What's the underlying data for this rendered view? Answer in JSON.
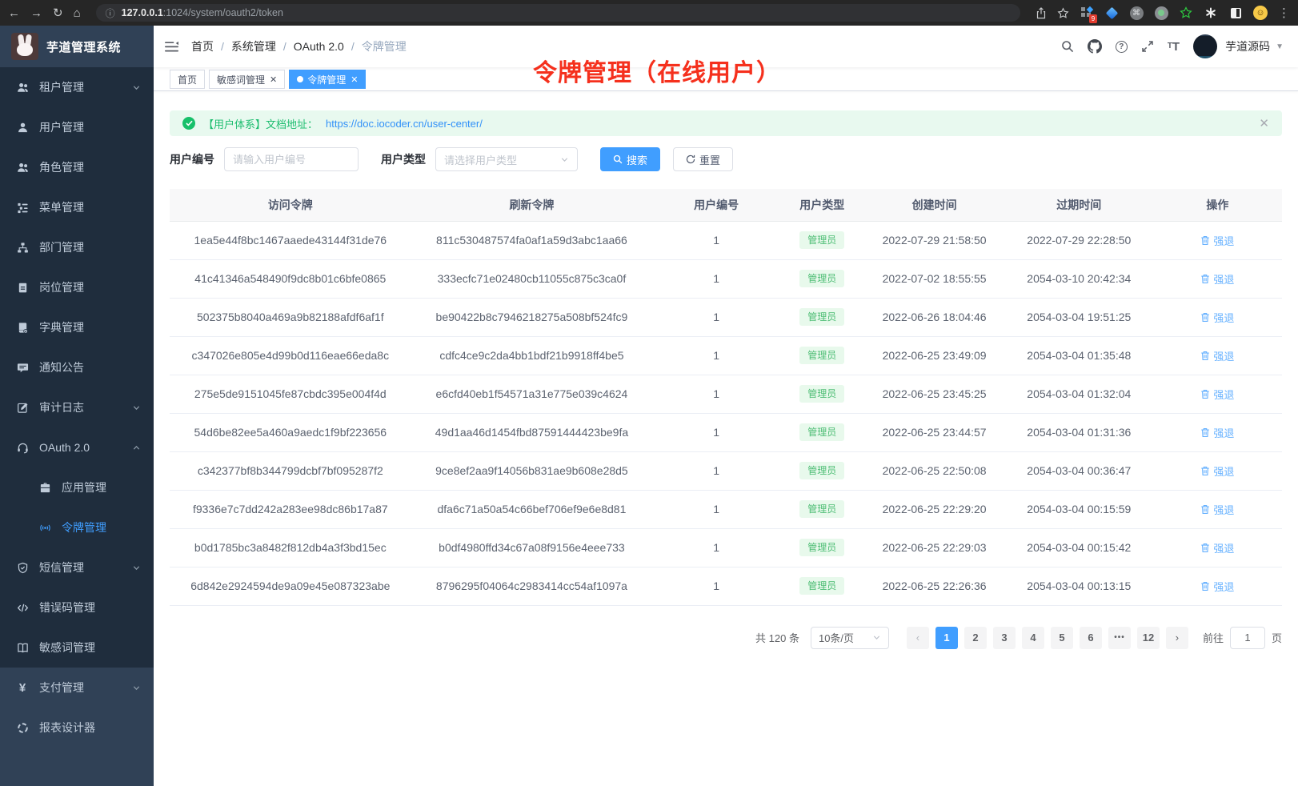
{
  "colors": {
    "accent": "#409eff",
    "success": "#17c06a",
    "link": "#3291f8",
    "annotation": "#f5301d",
    "menu-bg": "#304156",
    "submenu-bg": "#1f2d3d",
    "menu-text": "#bfcbd9",
    "badge-bg": "#e8f9ec",
    "badge-text": "#4dbd74",
    "action-link": "#66b1ff",
    "tab-active": "#409eff"
  },
  "browser": {
    "url_host": "127.0.0.1",
    "url_path": ":1024/system/oauth2/token",
    "extension_badge": "9"
  },
  "sidebar": {
    "logo_title": "芋道管理系统",
    "items": [
      {
        "name": "tenant",
        "label": "租户管理",
        "icon": "users",
        "chevron": "down",
        "section": "sub"
      },
      {
        "name": "user",
        "label": "用户管理",
        "icon": "user",
        "section": "sub"
      },
      {
        "name": "role",
        "label": "角色管理",
        "icon": "users",
        "section": "sub"
      },
      {
        "name": "menu",
        "label": "菜单管理",
        "icon": "menu",
        "section": "sub"
      },
      {
        "name": "dept",
        "label": "部门管理",
        "icon": "tree",
        "section": "sub"
      },
      {
        "name": "post",
        "label": "岗位管理",
        "icon": "badge",
        "section": "sub"
      },
      {
        "name": "dict",
        "label": "字典管理",
        "icon": "dict",
        "section": "sub"
      },
      {
        "name": "notice",
        "label": "通知公告",
        "icon": "message",
        "section": "sub"
      },
      {
        "name": "audit-log",
        "label": "审计日志",
        "icon": "edit",
        "chevron": "down",
        "section": "sub"
      },
      {
        "name": "oauth2",
        "label": "OAuth 2.0",
        "icon": "headset",
        "chevron": "up",
        "section": "sub"
      },
      {
        "name": "oauth2-app",
        "label": "应用管理",
        "icon": "briefcase",
        "section": "sub",
        "indent": true
      },
      {
        "name": "oauth2-token",
        "label": "令牌管理",
        "icon": "signal",
        "section": "sub",
        "indent": true,
        "active": true
      },
      {
        "name": "sms",
        "label": "短信管理",
        "icon": "shield",
        "chevron": "down",
        "section": "sub"
      },
      {
        "name": "error-code",
        "label": "错误码管理",
        "icon": "code",
        "section": "sub"
      },
      {
        "name": "sensitive-word",
        "label": "敏感词管理",
        "icon": "book",
        "section": "sub"
      },
      {
        "name": "pay",
        "label": "支付管理",
        "icon": "yen",
        "chevron": "down",
        "section": "top"
      },
      {
        "name": "report-design",
        "label": "报表设计器",
        "icon": "pie",
        "section": "top"
      }
    ]
  },
  "header": {
    "breadcrumb": [
      "首页",
      "系统管理",
      "OAuth 2.0",
      "令牌管理"
    ],
    "username": "芋道源码"
  },
  "tabs": [
    {
      "name": "home",
      "label": "首页"
    },
    {
      "name": "sensitive-word",
      "label": "敏感词管理",
      "closable": true
    },
    {
      "name": "token",
      "label": "令牌管理",
      "closable": true,
      "active": true
    }
  ],
  "annotation": "令牌管理（在线用户）",
  "alert": {
    "prefix": "【用户体系】文档地址：",
    "link": "https://doc.iocoder.cn/user-center/"
  },
  "filters": {
    "user_id_label": "用户编号",
    "user_id_placeholder": "请输入用户编号",
    "user_type_label": "用户类型",
    "user_type_placeholder": "请选择用户类型",
    "search_label": "搜索",
    "reset_label": "重置"
  },
  "table": {
    "columns": [
      "访问令牌",
      "刷新令牌",
      "用户编号",
      "用户类型",
      "创建时间",
      "过期时间",
      "操作"
    ],
    "action_label": "强退",
    "rows": [
      {
        "access_token": "1ea5e44f8bc1467aaede43144f31de76",
        "refresh_token": "811c530487574fa0af1a59d3abc1aa66",
        "user_id": "1",
        "user_type": "管理员",
        "created": "2022-07-29 21:58:50",
        "expires": "2022-07-29 22:28:50"
      },
      {
        "access_token": "41c41346a548490f9dc8b01c6bfe0865",
        "refresh_token": "333ecfc71e02480cb11055c875c3ca0f",
        "user_id": "1",
        "user_type": "管理员",
        "created": "2022-07-02 18:55:55",
        "expires": "2054-03-10 20:42:34"
      },
      {
        "access_token": "502375b8040a469a9b82188afdf6af1f",
        "refresh_token": "be90422b8c7946218275a508bf524fc9",
        "user_id": "1",
        "user_type": "管理员",
        "created": "2022-06-26 18:04:46",
        "expires": "2054-03-04 19:51:25"
      },
      {
        "access_token": "c347026e805e4d99b0d116eae66eda8c",
        "refresh_token": "cdfc4ce9c2da4bb1bdf21b9918ff4be5",
        "user_id": "1",
        "user_type": "管理员",
        "created": "2022-06-25 23:49:09",
        "expires": "2054-03-04 01:35:48"
      },
      {
        "access_token": "275e5de9151045fe87cbdc395e004f4d",
        "refresh_token": "e6cfd40eb1f54571a31e775e039c4624",
        "user_id": "1",
        "user_type": "管理员",
        "created": "2022-06-25 23:45:25",
        "expires": "2054-03-04 01:32:04"
      },
      {
        "access_token": "54d6be82ee5a460a9aedc1f9bf223656",
        "refresh_token": "49d1aa46d1454fbd87591444423be9fa",
        "user_id": "1",
        "user_type": "管理员",
        "created": "2022-06-25 23:44:57",
        "expires": "2054-03-04 01:31:36"
      },
      {
        "access_token": "c342377bf8b344799dcbf7bf095287f2",
        "refresh_token": "9ce8ef2aa9f14056b831ae9b608e28d5",
        "user_id": "1",
        "user_type": "管理员",
        "created": "2022-06-25 22:50:08",
        "expires": "2054-03-04 00:36:47"
      },
      {
        "access_token": "f9336e7c7dd242a283ee98dc86b17a87",
        "refresh_token": "dfa6c71a50a54c66bef706ef9e6e8d81",
        "user_id": "1",
        "user_type": "管理员",
        "created": "2022-06-25 22:29:20",
        "expires": "2054-03-04 00:15:59"
      },
      {
        "access_token": "b0d1785bc3a8482f812db4a3f3bd15ec",
        "refresh_token": "b0df4980ffd34c67a08f9156e4eee733",
        "user_id": "1",
        "user_type": "管理员",
        "created": "2022-06-25 22:29:03",
        "expires": "2054-03-04 00:15:42"
      },
      {
        "access_token": "6d842e2924594de9a09e45e087323abe",
        "refresh_token": "8796295f04064c2983414cc54af1097a",
        "user_id": "1",
        "user_type": "管理员",
        "created": "2022-06-25 22:26:36",
        "expires": "2054-03-04 00:13:15"
      }
    ]
  },
  "pagination": {
    "total_label": "共 120 条",
    "page_size": "10条/页",
    "pages": [
      "1",
      "2",
      "3",
      "4",
      "5",
      "6",
      "...",
      "12"
    ],
    "active_page": "1",
    "jump_prefix": "前往",
    "jump_value": "1",
    "jump_suffix": "页"
  }
}
